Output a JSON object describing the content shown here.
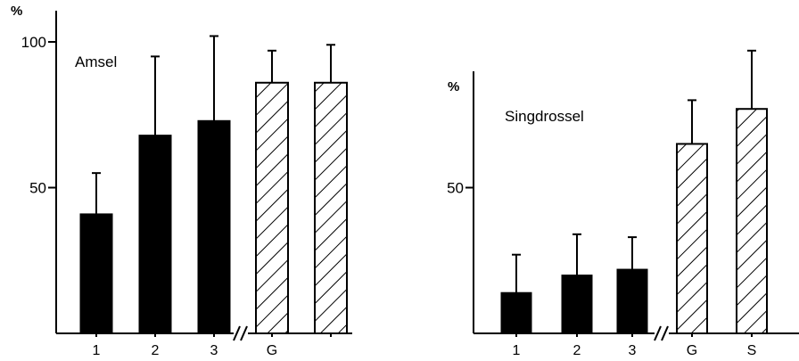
{
  "chart_data": [
    {
      "type": "bar",
      "title": "Amsel",
      "ylabel": "%",
      "ylim": [
        0,
        100
      ],
      "yticks": [
        50,
        100
      ],
      "yticklabels": [
        "50",
        "100"
      ],
      "categories": [
        "1",
        "2",
        "3",
        "G",
        ""
      ],
      "values": [
        41,
        68,
        73,
        86,
        86
      ],
      "error_upper": [
        55,
        95,
        102,
        97,
        99
      ],
      "styles": [
        "solid",
        "solid",
        "solid",
        "hatched",
        "hatched"
      ],
      "axis_break_after": 3
    },
    {
      "type": "bar",
      "title": "Singdrossel",
      "ylabel": "%",
      "ylim": [
        0,
        90
      ],
      "yticks": [
        50
      ],
      "yticklabels": [
        "50"
      ],
      "categories": [
        "1",
        "2",
        "3",
        "G",
        "S"
      ],
      "values": [
        14,
        20,
        22,
        65,
        77
      ],
      "error_upper": [
        27,
        34,
        33,
        80,
        97
      ],
      "styles": [
        "solid",
        "solid",
        "solid",
        "hatched",
        "hatched"
      ],
      "axis_break_after": 3
    }
  ]
}
